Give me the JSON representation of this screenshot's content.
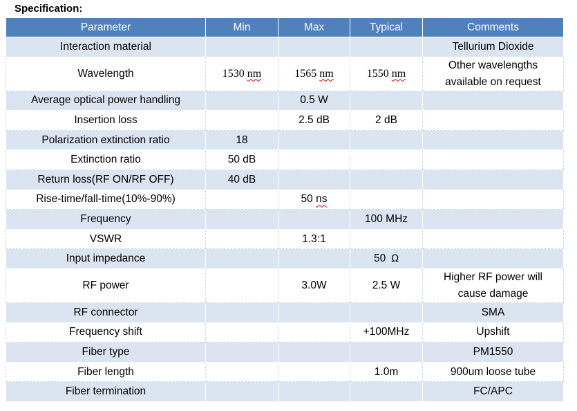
{
  "title": "Specification:",
  "colors": {
    "header_bg": "#4f81bd",
    "header_text": "#ffffff",
    "band_blue": "#dbe5f1",
    "band_white": "#ffffff",
    "spell_check_underline": "#c00000"
  },
  "columns": {
    "parameter": "Parameter",
    "min": "Min",
    "max": "Max",
    "typical": "Typical",
    "comments": "Comments"
  },
  "rows": [
    {
      "parameter": "Interaction material",
      "min": "",
      "max": "",
      "typical": "",
      "comments": "Tellurium Dioxide"
    },
    {
      "parameter": "Wavelength",
      "min_value": "1530",
      "min_unit": "nm",
      "max_value": "1565",
      "max_unit": "nm",
      "typical_value": "1550",
      "typical_unit": "nm",
      "comments_line1": "Other wavelengths",
      "comments_line2": "available on request"
    },
    {
      "parameter": "Average optical power handling",
      "min": "",
      "max": "0.5 W",
      "typical": "",
      "comments": ""
    },
    {
      "parameter": "Insertion loss",
      "min": "",
      "max": "2.5 dB",
      "typical": "2 dB",
      "comments": ""
    },
    {
      "parameter": "Polarization extinction ratio",
      "min": "18",
      "max": "",
      "typical": "",
      "comments": ""
    },
    {
      "parameter": "Extinction ratio",
      "min": "50 dB",
      "max": "",
      "typical": "",
      "comments": ""
    },
    {
      "parameter": "Return loss(RF ON/RF OFF)",
      "min": "40 dB",
      "max": "",
      "typical": "",
      "comments": ""
    },
    {
      "parameter": "Rise-time/fall-time(10%-90%)",
      "min": "",
      "max_value": "50",
      "max_unit": "ns",
      "typical": "",
      "comments": ""
    },
    {
      "parameter": "Frequency",
      "min": "",
      "max": "",
      "typical": "100 MHz",
      "comments": ""
    },
    {
      "parameter": "VSWR",
      "min": "",
      "max": "1.3:1",
      "typical": "",
      "comments": ""
    },
    {
      "parameter": "Input impedance",
      "min": "",
      "max": "",
      "typical_value": "50",
      "typical_unit": "Ω",
      "comments": ""
    },
    {
      "parameter": "RF power",
      "min": "",
      "max": "3.0W",
      "typical": "2.5 W",
      "comments_line1": "Higher RF power will",
      "comments_line2": "cause damage"
    },
    {
      "parameter": "RF connector",
      "min": "",
      "max": "",
      "typical": "",
      "comments": "SMA"
    },
    {
      "parameter": "Frequency shift",
      "min": "",
      "max": "",
      "typical": "+100MHz",
      "comments": "Upshift"
    },
    {
      "parameter": "Fiber type",
      "min": "",
      "max": "",
      "typical": "",
      "comments": "PM1550"
    },
    {
      "parameter": "Fiber length",
      "min": "",
      "max": "",
      "typical": "1.0m",
      "comments": "900um loose tube"
    },
    {
      "parameter": "Fiber termination",
      "min": "",
      "max": "",
      "typical": "",
      "comments": "FC/APC"
    }
  ]
}
